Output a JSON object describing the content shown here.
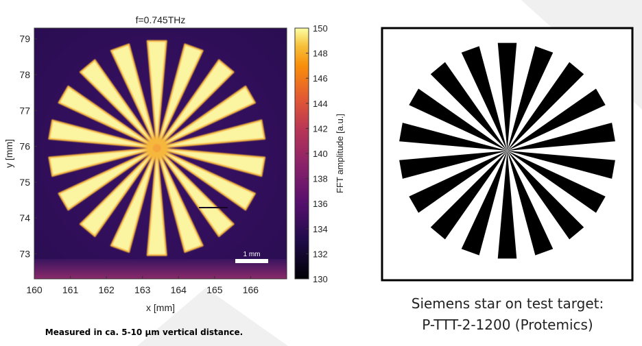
{
  "chart_data": {
    "type": "heatmap",
    "title": "f=0.745THz",
    "xlabel": "x [mm]",
    "ylabel": "y [mm]",
    "xlim": [
      160,
      167
    ],
    "ylim": [
      72.3,
      79.3
    ],
    "xticks": [
      "160",
      "161",
      "162",
      "163",
      "164",
      "165",
      "166"
    ],
    "yticks": [
      "73",
      "74",
      "75",
      "76",
      "77",
      "78",
      "79"
    ],
    "colorbar": {
      "label": "FFT amplitude [a.u.]",
      "range": [
        130,
        150
      ],
      "ticks": [
        "130",
        "132",
        "134",
        "136",
        "138",
        "140",
        "142",
        "144",
        "146",
        "148",
        "150"
      ],
      "colormap": "inferno"
    },
    "scalebar_label": "1 mm",
    "star_center": [
      163.4,
      75.95
    ],
    "star_radius_mm": 3.0,
    "spoke_count": 18
  },
  "reference_panel": {
    "spoke_count": 18,
    "colors": {
      "spoke": "#000000",
      "frame": "#000000",
      "background": "#ffffff"
    }
  },
  "captions": {
    "left": "Measured in ca. 5-10 µm vertical distance.",
    "right_line1": "Siemens star on test target:",
    "right_line2": "P-TTT-2-1200 (Protemics)"
  }
}
